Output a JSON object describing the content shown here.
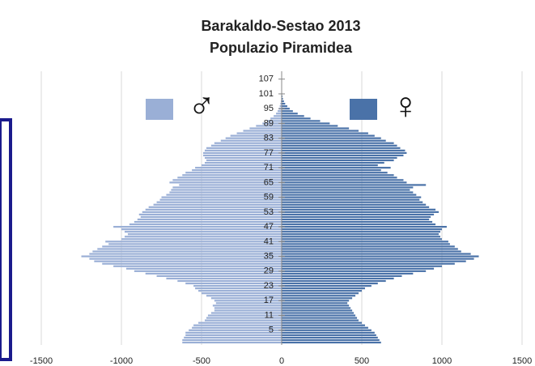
{
  "chart_data": {
    "type": "pyramid",
    "title": [
      "Barakaldo-Sestao 2013",
      "Populazio Piramidea"
    ],
    "categories": [
      null,
      null,
      null,
      null,
      null,
      "5",
      null,
      null,
      null,
      null,
      null,
      "11",
      null,
      null,
      null,
      null,
      null,
      "17",
      null,
      null,
      null,
      null,
      null,
      "23",
      null,
      null,
      null,
      null,
      null,
      "29",
      null,
      null,
      null,
      null,
      null,
      "35",
      null,
      null,
      null,
      null,
      null,
      "41",
      null,
      null,
      null,
      null,
      null,
      "47",
      null,
      null,
      null,
      null,
      null,
      "53",
      null,
      null,
      null,
      null,
      null,
      "59",
      null,
      null,
      null,
      null,
      null,
      "65",
      null,
      null,
      null,
      null,
      null,
      "71",
      null,
      null,
      null,
      null,
      null,
      "77",
      null,
      null,
      null,
      null,
      null,
      "83",
      null,
      null,
      null,
      null,
      null,
      "89",
      null,
      null,
      null,
      null,
      null,
      "95",
      null,
      null,
      null,
      null,
      null,
      "101",
      null,
      null,
      null,
      null,
      null,
      "107"
    ],
    "series": [
      {
        "name": "♂",
        "color": "#9aafd6",
        "values": [
          -620,
          -620,
          -610,
          -600,
          -600,
          -580,
          -560,
          -550,
          -520,
          -480,
          -470,
          -460,
          -440,
          -420,
          -420,
          -430,
          -410,
          -420,
          -440,
          -470,
          -500,
          -520,
          -540,
          -550,
          -600,
          -650,
          -720,
          -780,
          -850,
          -920,
          -970,
          -1050,
          -1120,
          -1170,
          -1200,
          -1250,
          -1200,
          -1180,
          -1150,
          -1120,
          -1080,
          -1100,
          -1000,
          -980,
          -960,
          -980,
          -1000,
          -1050,
          -950,
          -920,
          -900,
          -880,
          -890,
          -870,
          -850,
          -830,
          -800,
          -780,
          -760,
          -750,
          -720,
          -700,
          -690,
          -680,
          -640,
          -700,
          -680,
          -650,
          -620,
          -600,
          -560,
          -540,
          -500,
          -480,
          -470,
          -480,
          -490,
          -490,
          -480,
          -470,
          -440,
          -420,
          -380,
          -350,
          -320,
          -280,
          -240,
          -200,
          -160,
          -120,
          -90,
          -70,
          -50,
          -35,
          -25,
          -18,
          -12,
          -8,
          -5,
          -3,
          -2,
          -1,
          -1,
          0,
          0,
          0,
          0,
          0
        ]
      },
      {
        "name": "♀",
        "color": "#4a72a8",
        "values": [
          620,
          610,
          600,
          590,
          580,
          560,
          540,
          520,
          500,
          480,
          470,
          460,
          450,
          440,
          430,
          420,
          410,
          420,
          440,
          460,
          480,
          500,
          520,
          560,
          600,
          650,
          700,
          750,
          820,
          900,
          950,
          1000,
          1080,
          1150,
          1200,
          1230,
          1180,
          1120,
          1100,
          1080,
          1050,
          1040,
          1000,
          990,
          980,
          990,
          1000,
          1030,
          960,
          940,
          920,
          930,
          950,
          980,
          960,
          920,
          900,
          880,
          860,
          870,
          840,
          820,
          800,
          820,
          900,
          780,
          760,
          720,
          700,
          660,
          620,
          680,
          600,
          640,
          700,
          720,
          760,
          780,
          770,
          740,
          720,
          700,
          650,
          620,
          580,
          540,
          480,
          420,
          350,
          300,
          240,
          180,
          140,
          100,
          70,
          50,
          35,
          22,
          14,
          8,
          5,
          3,
          2,
          1,
          1,
          0,
          0,
          0
        ]
      }
    ],
    "xlim": [
      -1500,
      1500
    ],
    "xticks": [
      -1500,
      -1000,
      -500,
      0,
      500,
      1000,
      1500
    ],
    "grid": true
  }
}
